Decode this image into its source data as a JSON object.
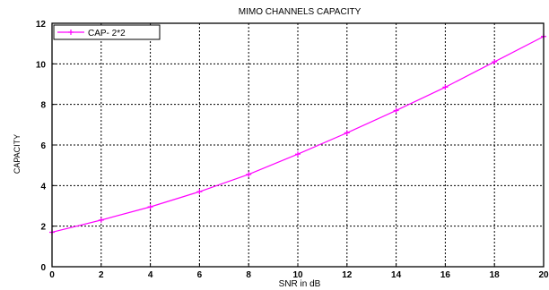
{
  "chart_data": {
    "type": "line",
    "title": "MIMO CHANNELS CAPACITY",
    "xlabel": "SNR in dB",
    "ylabel": "CAPACITY",
    "xlim": [
      0,
      20
    ],
    "ylim": [
      0,
      12
    ],
    "xticks": [
      0,
      2,
      4,
      6,
      8,
      10,
      12,
      14,
      16,
      18,
      20
    ],
    "yticks": [
      0,
      2,
      4,
      6,
      8,
      10,
      12
    ],
    "grid": true,
    "legend_position": "top-left",
    "series": [
      {
        "name": "CAP- 2*2",
        "color": "#ff00ff",
        "marker": "plus",
        "x": [
          0,
          2,
          4,
          6,
          8,
          10,
          12,
          14,
          16,
          18,
          20
        ],
        "y": [
          1.7,
          2.3,
          2.95,
          3.7,
          4.55,
          5.55,
          6.6,
          7.7,
          8.85,
          10.1,
          11.35
        ]
      }
    ]
  }
}
